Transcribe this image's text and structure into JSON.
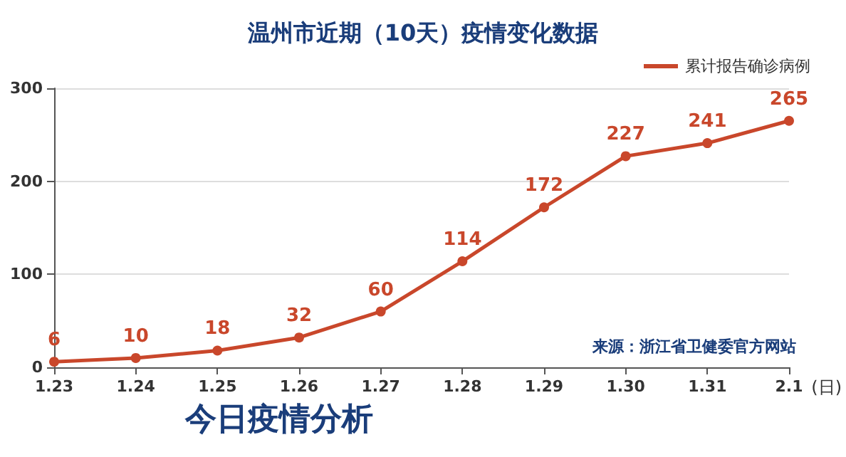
{
  "chart_data": {
    "type": "line",
    "title": "温州市近期（10天）疫情变化数据",
    "xlabel": "(日)",
    "categories": [
      "1.23",
      "1.24",
      "1.25",
      "1.26",
      "1.27",
      "1.28",
      "1.29",
      "1.30",
      "1.31",
      "2.1"
    ],
    "series": [
      {
        "name": "累计报告确诊病例",
        "color": "#c9472b",
        "values": [
          6,
          10,
          18,
          32,
          60,
          114,
          172,
          227,
          241,
          265
        ]
      }
    ],
    "ylim": [
      0,
      300
    ],
    "yticks": [
      0,
      100,
      200,
      300
    ],
    "grid": "y",
    "legend": "top right",
    "marker": "circle",
    "line_style": "solid",
    "data_labels": true,
    "annotations": [
      "来源：浙江省卫健委官方网站",
      "今日疫情分析"
    ]
  }
}
